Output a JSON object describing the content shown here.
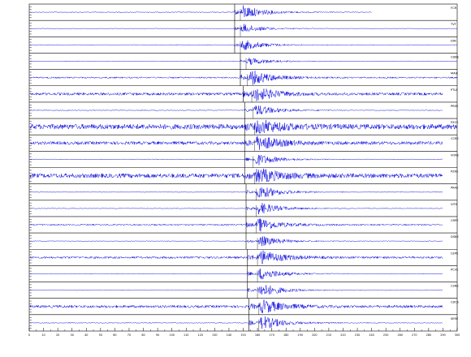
{
  "chart_data": {
    "type": "line",
    "title": "",
    "xlabel": "",
    "ylabel": "",
    "xlim": [
      0,
      300
    ],
    "x_ticks": [
      0,
      10,
      20,
      30,
      40,
      50,
      60,
      70,
      80,
      90,
      100,
      110,
      120,
      130,
      140,
      150,
      160,
      170,
      180,
      190,
      200,
      210,
      220,
      230,
      240,
      250,
      260,
      270,
      280,
      290,
      300
    ],
    "grid": false,
    "legend": "none",
    "trace_color": "#0000dd",
    "marker_color": "#000000",
    "series": [
      {
        "name": "FCR",
        "p_arrival": 144,
        "s_arrival": 148,
        "peak_amp": 0.85,
        "noise": 0.06,
        "end": 240
      },
      {
        "name": "TVT",
        "p_arrival": 144,
        "s_arrival": 148,
        "peak_amp": 0.55,
        "noise": 0.04,
        "end": 300
      },
      {
        "name": "DIN",
        "p_arrival": 144,
        "s_arrival": 148,
        "peak_amp": 0.65,
        "noise": 0.05,
        "end": 300
      },
      {
        "name": "CDBE",
        "p_arrival": 148,
        "s_arrival": 152,
        "peak_amp": 0.45,
        "noise": 0.05,
        "end": 300
      },
      {
        "name": "MAIE",
        "p_arrival": 148,
        "s_arrival": 153,
        "peak_amp": 1.0,
        "noise": 0.1,
        "end": 300
      },
      {
        "name": "PTLE",
        "p_arrival": 150,
        "s_arrival": 156,
        "peak_amp": 0.95,
        "noise": 0.18,
        "end": 290
      },
      {
        "name": "PREE",
        "p_arrival": 151,
        "s_arrival": 157,
        "peak_amp": 0.7,
        "noise": 0.06,
        "end": 290
      },
      {
        "name": "PZCE",
        "p_arrival": 151,
        "s_arrival": 158,
        "peak_amp": 0.9,
        "noise": 0.35,
        "end": 300
      },
      {
        "name": "CCRE",
        "p_arrival": 151,
        "s_arrival": 158,
        "peak_amp": 1.0,
        "noise": 0.22,
        "end": 290
      },
      {
        "name": "VORE",
        "p_arrival": 151,
        "s_arrival": 157,
        "peak_amp": 0.8,
        "noise": 0.05,
        "end": 290
      },
      {
        "name": "PZKE",
        "p_arrival": 151,
        "s_arrival": 158,
        "peak_amp": 0.95,
        "noise": 0.3,
        "end": 290
      },
      {
        "name": "PRAE",
        "p_arrival": 152,
        "s_arrival": 159,
        "peak_amp": 0.9,
        "noise": 0.05,
        "end": 290
      },
      {
        "name": "VITE",
        "p_arrival": 152,
        "s_arrival": 159,
        "peak_amp": 0.8,
        "noise": 0.05,
        "end": 290
      },
      {
        "name": "CRPE",
        "p_arrival": 152,
        "s_arrival": 159,
        "peak_amp": 0.85,
        "noise": 0.1,
        "end": 290
      },
      {
        "name": "DSBE",
        "p_arrival": 152,
        "s_arrival": 160,
        "peak_amp": 0.7,
        "noise": 0.05,
        "end": 290
      },
      {
        "name": "CEPE",
        "p_arrival": 153,
        "s_arrival": 160,
        "peak_amp": 0.95,
        "noise": 0.15,
        "end": 290
      },
      {
        "name": "PCVE",
        "p_arrival": 153,
        "s_arrival": 160,
        "peak_amp": 0.8,
        "noise": 0.05,
        "end": 290
      },
      {
        "name": "CSNE",
        "p_arrival": 153,
        "s_arrival": 160,
        "peak_amp": 0.9,
        "noise": 0.05,
        "end": 290
      },
      {
        "name": "CDCE",
        "p_arrival": 154,
        "s_arrival": 161,
        "peak_amp": 0.9,
        "noise": 0.18,
        "end": 290
      },
      {
        "name": "SERE",
        "p_arrival": 154,
        "s_arrival": 161,
        "peak_amp": 0.95,
        "noise": 0.06,
        "end": 290
      }
    ]
  }
}
